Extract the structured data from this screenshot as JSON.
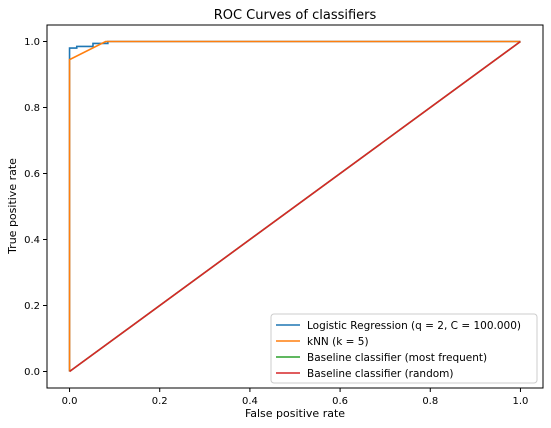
{
  "chart_data": {
    "type": "line",
    "title": "ROC Curves of classifiers",
    "xlabel": "False positive rate",
    "ylabel": "True positive rate",
    "xlim": [
      -0.05,
      1.05
    ],
    "ylim": [
      -0.05,
      1.05
    ],
    "xticks": [
      0.0,
      0.2,
      0.4,
      0.6,
      0.8,
      1.0
    ],
    "yticks": [
      0.0,
      0.2,
      0.4,
      0.6,
      0.8,
      1.0
    ],
    "xtick_labels": [
      "0.0",
      "0.2",
      "0.4",
      "0.6",
      "0.8",
      "1.0"
    ],
    "ytick_labels": [
      "0.0",
      "0.2",
      "0.4",
      "0.6",
      "0.8",
      "1.0"
    ],
    "grid": false,
    "legend_position": "lower-right",
    "series": [
      {
        "name": "Logistic Regression (q = 2, C = 100.000)",
        "color": "#1f77b4",
        "x": [
          0.0,
          0.0,
          0.0,
          0.016,
          0.016,
          0.052,
          0.052,
          0.085,
          0.085,
          1.0
        ],
        "y": [
          0.0,
          0.0,
          0.98,
          0.98,
          0.985,
          0.985,
          0.994,
          0.994,
          1.0,
          1.0
        ]
      },
      {
        "name": "kNN (k = 5)",
        "color": "#ff7f0e",
        "x": [
          0.0,
          0.0,
          0.0,
          0.08,
          1.0
        ],
        "y": [
          0.0,
          0.0,
          0.945,
          1.0,
          1.0
        ]
      },
      {
        "name": "Baseline classifier (most frequent)",
        "color": "#2ca02c",
        "x": [
          0.0,
          1.0
        ],
        "y": [
          0.0,
          1.0
        ]
      },
      {
        "name": "Baseline classifier (random)",
        "color": "#d62728",
        "x": [
          0.0,
          1.0
        ],
        "y": [
          0.0,
          1.0
        ]
      }
    ]
  }
}
